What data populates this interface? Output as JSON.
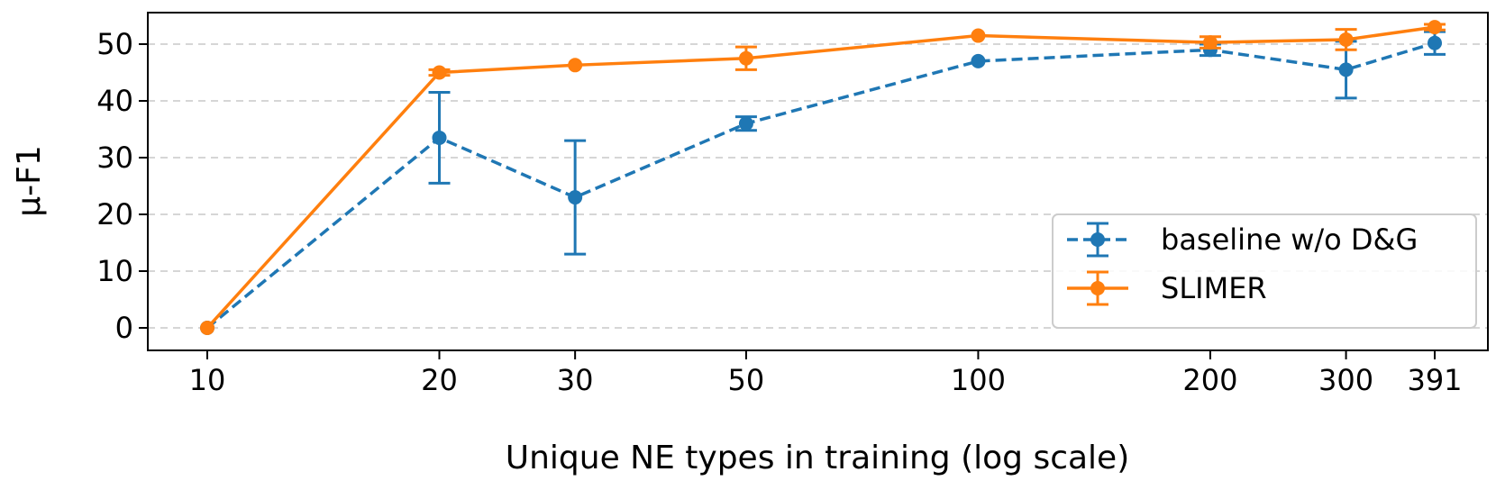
{
  "chart_data": {
    "type": "line",
    "xscale": "log",
    "title": "",
    "xlabel": "Unique NE types in training (log scale)",
    "ylabel": "μ-F1",
    "x": [
      10,
      20,
      30,
      50,
      100,
      200,
      300,
      391
    ],
    "x_tick_labels": [
      "10",
      "20",
      "30",
      "50",
      "100",
      "200",
      "300",
      "391"
    ],
    "y_ticks": [
      0,
      10,
      20,
      30,
      40,
      50
    ],
    "y_tick_labels": [
      "0",
      "10",
      "20",
      "30",
      "40",
      "50"
    ],
    "ylim": [
      -4,
      58
    ],
    "grid": "horizontal dashed",
    "legend_position": "bottom-right",
    "series": [
      {
        "name": "baseline w/o D&G",
        "color": "#1f77b4",
        "line_style": "dashed",
        "values": [
          0,
          33.5,
          23,
          36,
          47,
          49,
          45.5,
          50.2
        ],
        "error": [
          0,
          8,
          10,
          1.2,
          0,
          1,
          5,
          2
        ]
      },
      {
        "name": "SLIMER",
        "color": "#ff7f0e",
        "line_style": "solid",
        "values": [
          0,
          45,
          46.3,
          47.5,
          51.5,
          50.3,
          50.8,
          53
        ],
        "error": [
          0,
          0.5,
          0,
          2,
          0,
          1,
          1.8,
          0.5
        ]
      }
    ]
  }
}
